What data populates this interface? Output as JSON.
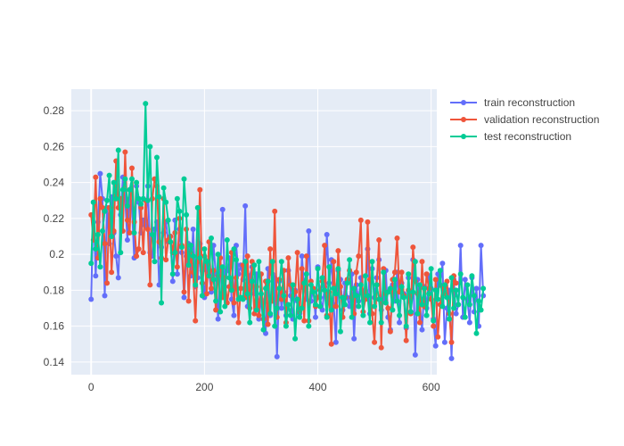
{
  "chart_data": {
    "type": "line",
    "title": "",
    "xlabel": "",
    "ylabel": "",
    "xlim": [
      -35,
      610
    ],
    "ylim": [
      0.133,
      0.292
    ],
    "x_ticks": [
      0,
      200,
      400,
      600
    ],
    "y_ticks": [
      0.14,
      0.16,
      0.18,
      0.2,
      0.22,
      0.24,
      0.26,
      0.28
    ],
    "x_tick_labels": [
      "0",
      "200",
      "400",
      "600"
    ],
    "y_tick_labels": [
      "0.14",
      "0.16",
      "0.18",
      "0.2",
      "0.22",
      "0.24",
      "0.26",
      "0.28"
    ],
    "grid": true,
    "legend_position": "top-right",
    "x_start": 0,
    "x_step": 4,
    "series": [
      {
        "name": "train reconstruction",
        "color": "#636efa",
        "values": [
          0.175,
          0.229,
          0.188,
          0.218,
          0.245,
          0.231,
          0.177,
          0.226,
          0.206,
          0.232,
          0.212,
          0.199,
          0.187,
          0.222,
          0.243,
          0.231,
          0.208,
          0.236,
          0.226,
          0.198,
          0.238,
          0.229,
          0.212,
          0.219,
          0.216,
          0.238,
          0.201,
          0.199,
          0.214,
          0.218,
          0.183,
          0.204,
          0.212,
          0.218,
          0.207,
          0.21,
          0.185,
          0.219,
          0.189,
          0.214,
          0.201,
          0.176,
          0.199,
          0.206,
          0.188,
          0.214,
          0.182,
          0.187,
          0.206,
          0.191,
          0.176,
          0.194,
          0.191,
          0.179,
          0.205,
          0.189,
          0.164,
          0.192,
          0.225,
          0.182,
          0.191,
          0.198,
          0.175,
          0.166,
          0.205,
          0.189,
          0.194,
          0.186,
          0.227,
          0.171,
          0.188,
          0.193,
          0.178,
          0.189,
          0.164,
          0.175,
          0.173,
          0.156,
          0.192,
          0.166,
          0.189,
          0.187,
          0.143,
          0.185,
          0.17,
          0.179,
          0.166,
          0.191,
          0.177,
          0.164,
          0.18,
          0.174,
          0.167,
          0.199,
          0.181,
          0.175,
          0.213,
          0.174,
          0.181,
          0.165,
          0.193,
          0.176,
          0.169,
          0.182,
          0.211,
          0.184,
          0.197,
          0.172,
          0.151,
          0.191,
          0.186,
          0.169,
          0.184,
          0.176,
          0.171,
          0.189,
          0.153,
          0.183,
          0.174,
          0.187,
          0.178,
          0.18,
          0.203,
          0.167,
          0.192,
          0.176,
          0.187,
          0.197,
          0.169,
          0.174,
          0.191,
          0.165,
          0.158,
          0.183,
          0.174,
          0.19,
          0.162,
          0.184,
          0.178,
          0.159,
          0.187,
          0.168,
          0.197,
          0.144,
          0.186,
          0.173,
          0.158,
          0.182,
          0.17,
          0.188,
          0.181,
          0.164,
          0.149,
          0.189,
          0.183,
          0.195,
          0.151,
          0.17,
          0.18,
          0.142,
          0.186,
          0.167,
          0.172,
          0.205,
          0.165,
          0.186,
          0.175,
          0.162,
          0.187,
          0.168,
          0.181,
          0.16,
          0.205,
          0.177
        ]
      },
      {
        "name": "validation reconstruction",
        "color": "#ef553b",
        "values": [
          0.222,
          0.208,
          0.243,
          0.198,
          0.231,
          0.226,
          0.206,
          0.184,
          0.226,
          0.19,
          0.213,
          0.252,
          0.226,
          0.231,
          0.213,
          0.257,
          0.219,
          0.212,
          0.248,
          0.218,
          0.199,
          0.203,
          0.226,
          0.201,
          0.23,
          0.214,
          0.183,
          0.231,
          0.242,
          0.238,
          0.207,
          0.198,
          0.231,
          0.197,
          0.208,
          0.21,
          0.201,
          0.212,
          0.193,
          0.22,
          0.205,
          0.179,
          0.214,
          0.174,
          0.201,
          0.19,
          0.163,
          0.196,
          0.236,
          0.184,
          0.199,
          0.178,
          0.207,
          0.181,
          0.191,
          0.169,
          0.188,
          0.198,
          0.176,
          0.187,
          0.173,
          0.182,
          0.201,
          0.173,
          0.187,
          0.162,
          0.181,
          0.194,
          0.176,
          0.199,
          0.17,
          0.196,
          0.167,
          0.182,
          0.166,
          0.189,
          0.164,
          0.185,
          0.161,
          0.203,
          0.174,
          0.224,
          0.165,
          0.186,
          0.175,
          0.191,
          0.162,
          0.198,
          0.183,
          0.177,
          0.179,
          0.201,
          0.168,
          0.192,
          0.163,
          0.199,
          0.163,
          0.185,
          0.181,
          0.171,
          0.176,
          0.18,
          0.185,
          0.205,
          0.166,
          0.179,
          0.15,
          0.196,
          0.171,
          0.202,
          0.182,
          0.165,
          0.176,
          0.186,
          0.191,
          0.176,
          0.167,
          0.19,
          0.199,
          0.219,
          0.168,
          0.175,
          0.218,
          0.186,
          0.167,
          0.151,
          0.183,
          0.208,
          0.148,
          0.192,
          0.178,
          0.17,
          0.157,
          0.186,
          0.19,
          0.209,
          0.179,
          0.19,
          0.177,
          0.152,
          0.18,
          0.167,
          0.204,
          0.185,
          0.178,
          0.162,
          0.196,
          0.171,
          0.189,
          0.181,
          0.175,
          0.16,
          0.186,
          0.154,
          0.172,
          0.182,
          0.178,
          0.185,
          0.167,
          0.151,
          0.188,
          0.184
        ]
      },
      {
        "name": "test reconstruction",
        "color": "#00cc96",
        "values": [
          0.195,
          0.229,
          0.203,
          0.211,
          0.193,
          0.213,
          0.224,
          0.23,
          0.244,
          0.21,
          0.24,
          0.231,
          0.258,
          0.201,
          0.236,
          0.242,
          0.227,
          0.236,
          0.242,
          0.212,
          0.24,
          0.231,
          0.228,
          0.231,
          0.284,
          0.23,
          0.26,
          0.211,
          0.196,
          0.254,
          0.232,
          0.173,
          0.237,
          0.229,
          0.219,
          0.207,
          0.189,
          0.201,
          0.231,
          0.224,
          0.204,
          0.242,
          0.222,
          0.194,
          0.205,
          0.199,
          0.183,
          0.226,
          0.198,
          0.177,
          0.203,
          0.196,
          0.188,
          0.209,
          0.186,
          0.174,
          0.2,
          0.168,
          0.193,
          0.171,
          0.208,
          0.187,
          0.18,
          0.203,
          0.197,
          0.175,
          0.176,
          0.175,
          0.196,
          0.178,
          0.162,
          0.185,
          0.194,
          0.169,
          0.196,
          0.178,
          0.158,
          0.181,
          0.185,
          0.167,
          0.196,
          0.16,
          0.17,
          0.181,
          0.196,
          0.177,
          0.16,
          0.172,
          0.166,
          0.183,
          0.153,
          0.175,
          0.165,
          0.17,
          0.184,
          0.189,
          0.16,
          0.183,
          0.179,
          0.172,
          0.192,
          0.171,
          0.187,
          0.18,
          0.165,
          0.193,
          0.169,
          0.181,
          0.178,
          0.192,
          0.157,
          0.176,
          0.172,
          0.184,
          0.197,
          0.165,
          0.181,
          0.177,
          0.171,
          0.183,
          0.166,
          0.188,
          0.177,
          0.162,
          0.196,
          0.171,
          0.183,
          0.175,
          0.162,
          0.19,
          0.173,
          0.179,
          0.181,
          0.169,
          0.186,
          0.174,
          0.166,
          0.182,
          0.176,
          0.16,
          0.189,
          0.168,
          0.179,
          0.196,
          0.167,
          0.183,
          0.172,
          0.181,
          0.166,
          0.178,
          0.192,
          0.163,
          0.18,
          0.175,
          0.191,
          0.171,
          0.183,
          0.176,
          0.164,
          0.187,
          0.17,
          0.18,
          0.172,
          0.189,
          0.176,
          0.165,
          0.183,
          0.172,
          0.188,
          0.177,
          0.156,
          0.174,
          0.169,
          0.181
        ]
      }
    ]
  }
}
